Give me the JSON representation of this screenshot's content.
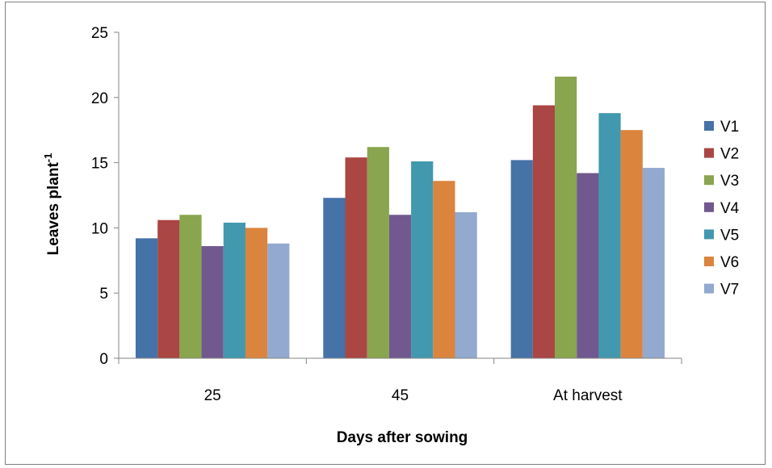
{
  "chart_data": {
    "type": "bar",
    "title": "",
    "xlabel": "Days after sowing",
    "ylabel": {
      "text": "Leaves plant",
      "superscript": "-1"
    },
    "categories": [
      "25",
      "45",
      "At harvest"
    ],
    "ylim": [
      0,
      25
    ],
    "yticks": [
      "0",
      "5",
      "10",
      "15",
      "20",
      "25"
    ],
    "grid": false,
    "legend_position": "right",
    "series": [
      {
        "name": "V1",
        "color": "#4572A7",
        "values": [
          9.2,
          12.3,
          15.2
        ]
      },
      {
        "name": "V2",
        "color": "#AA4643",
        "values": [
          10.6,
          15.4,
          19.4
        ]
      },
      {
        "name": "V3",
        "color": "#89A54E",
        "values": [
          11.0,
          16.2,
          21.6
        ]
      },
      {
        "name": "V4",
        "color": "#71588F",
        "values": [
          8.6,
          11.0,
          14.2
        ]
      },
      {
        "name": "V5",
        "color": "#4198AF",
        "values": [
          10.4,
          15.1,
          18.8
        ]
      },
      {
        "name": "V6",
        "color": "#DB843D",
        "values": [
          10.0,
          13.6,
          17.5
        ]
      },
      {
        "name": "V7",
        "color": "#93A9CF",
        "values": [
          8.8,
          11.2,
          14.6
        ]
      }
    ]
  }
}
